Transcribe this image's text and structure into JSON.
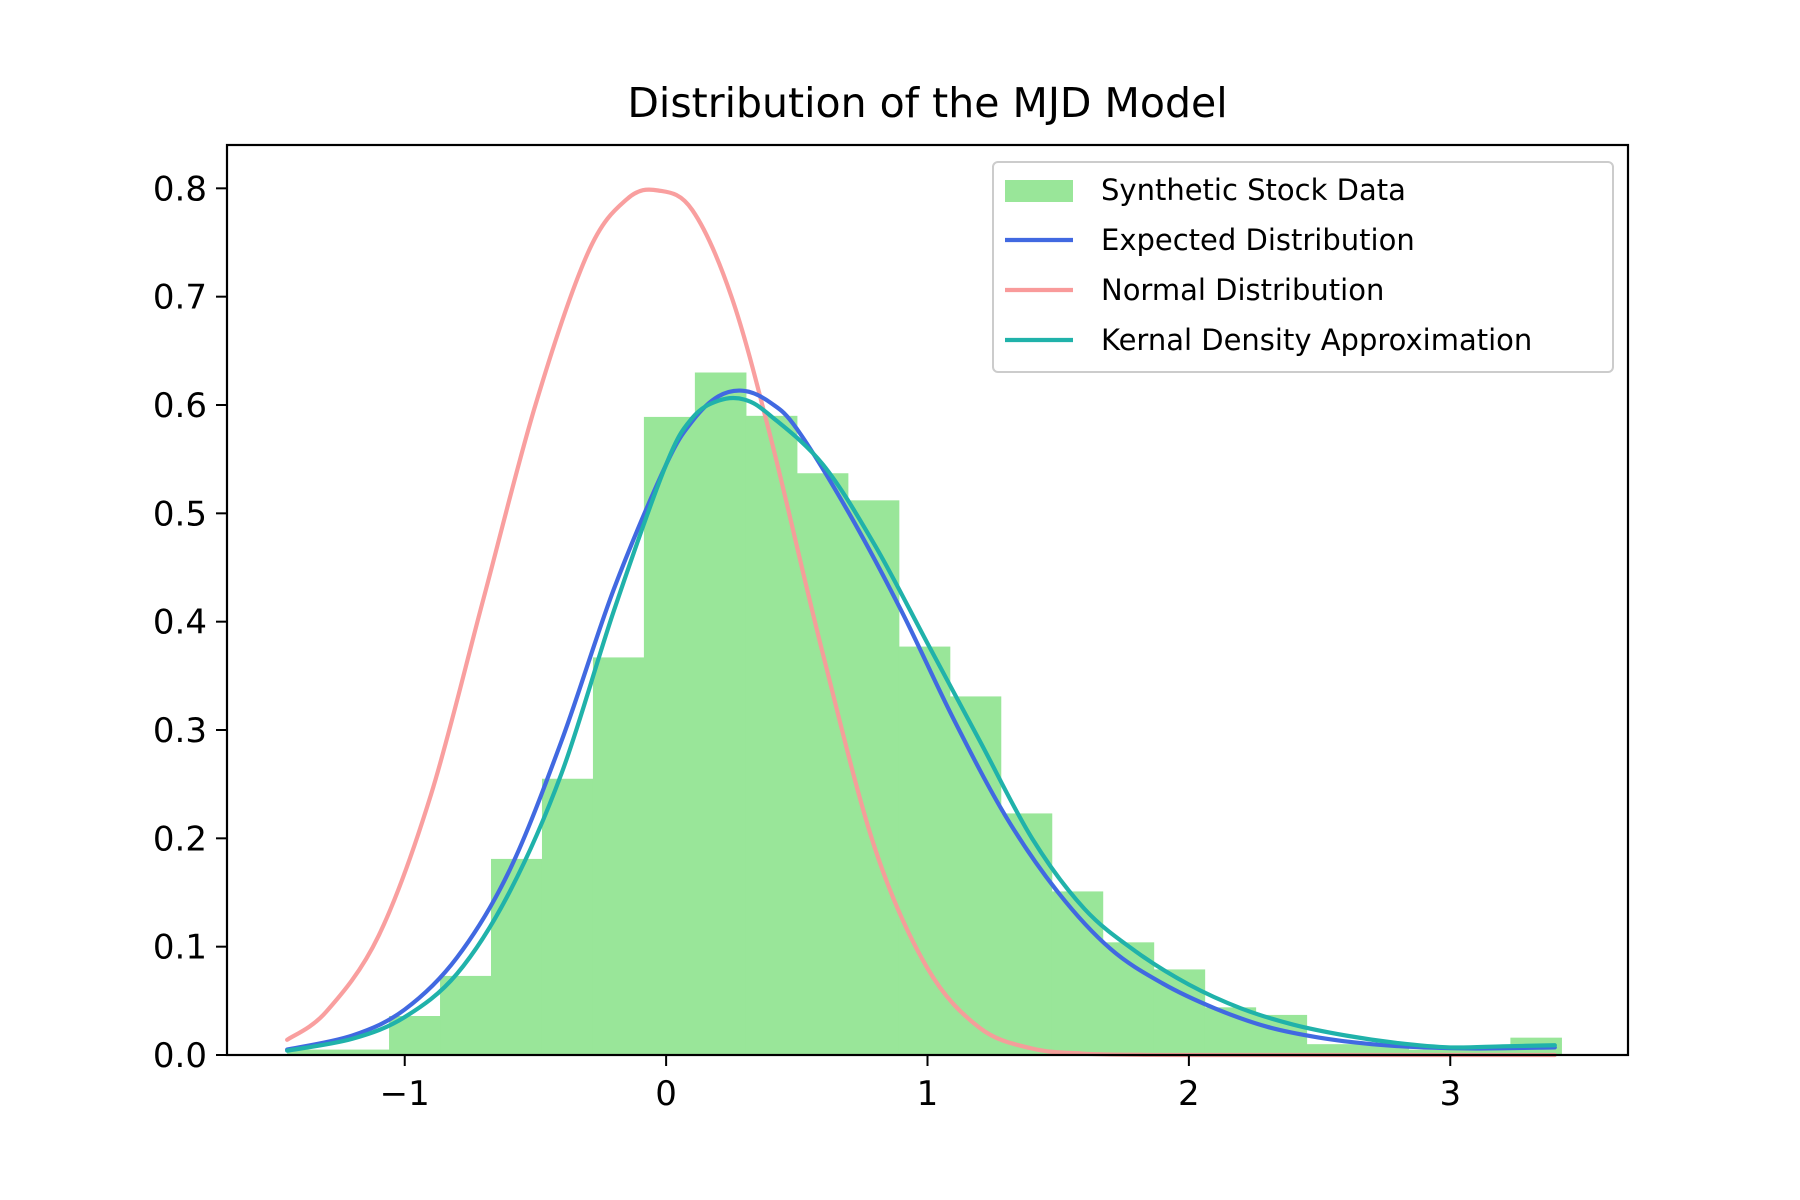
{
  "chart_data": {
    "type": "histogram_with_lines",
    "title": "Distribution of the MJD Model",
    "xlabel": "",
    "ylabel": "",
    "xlim": [
      -1.68,
      3.68
    ],
    "ylim": [
      0,
      0.84
    ],
    "xticks": [
      -1,
      0,
      1,
      2,
      3
    ],
    "xtick_labels": [
      "−1",
      "0",
      "1",
      "2",
      "3"
    ],
    "yticks": [
      0.0,
      0.1,
      0.2,
      0.3,
      0.4,
      0.5,
      0.6,
      0.7,
      0.8
    ],
    "ytick_labels": [
      "0.0",
      "0.1",
      "0.2",
      "0.3",
      "0.4",
      "0.5",
      "0.6",
      "0.7",
      "0.8"
    ],
    "grid": false,
    "legend_position": "upper-right",
    "colors": {
      "histogram": "#99e699",
      "expected": "#4169e1",
      "normal": "#f99a9a",
      "kde": "#20b2aa"
    },
    "histogram": {
      "name": "Synthetic Stock Data",
      "bin_edges": [
        -1.45,
        -1.255,
        -1.06,
        -0.865,
        -0.67,
        -0.475,
        -0.28,
        -0.085,
        0.11,
        0.305,
        0.5,
        0.695,
        0.89,
        1.085,
        1.28,
        1.475,
        1.67,
        1.865,
        2.06,
        2.255,
        2.45,
        2.645,
        2.84,
        3.035,
        3.23,
        3.425
      ],
      "values": [
        0.005,
        0.005,
        0.036,
        0.073,
        0.181,
        0.255,
        0.367,
        0.589,
        0.63,
        0.59,
        0.537,
        0.512,
        0.377,
        0.331,
        0.223,
        0.151,
        0.104,
        0.079,
        0.044,
        0.037,
        0.01,
        0.01,
        0.005,
        0.005,
        0.016
      ]
    },
    "series": [
      {
        "name": "Expected Distribution",
        "x": [
          -1.45,
          -1.2,
          -1.0,
          -0.8,
          -0.6,
          -0.4,
          -0.2,
          0.0,
          0.1,
          0.2,
          0.3,
          0.4,
          0.5,
          0.7,
          0.9,
          1.1,
          1.3,
          1.5,
          1.7,
          1.9,
          2.1,
          2.3,
          2.5,
          2.7,
          2.9,
          3.1,
          3.4
        ],
        "y": [
          0.005,
          0.018,
          0.042,
          0.09,
          0.17,
          0.29,
          0.43,
          0.545,
          0.585,
          0.608,
          0.613,
          0.602,
          0.578,
          0.5,
          0.41,
          0.31,
          0.22,
          0.15,
          0.098,
          0.066,
          0.043,
          0.026,
          0.016,
          0.01,
          0.007,
          0.006,
          0.007
        ]
      },
      {
        "name": "Normal Distribution",
        "x": [
          -1.45,
          -1.3,
          -1.1,
          -0.9,
          -0.7,
          -0.5,
          -0.3,
          -0.15,
          -0.03,
          0.1,
          0.25,
          0.4,
          0.6,
          0.8,
          1.0,
          1.2,
          1.4,
          1.6,
          1.8,
          2.0,
          2.5,
          3.0,
          3.4
        ],
        "y": [
          0.014,
          0.04,
          0.11,
          0.24,
          0.42,
          0.6,
          0.74,
          0.79,
          0.798,
          0.78,
          0.7,
          0.57,
          0.37,
          0.19,
          0.08,
          0.025,
          0.006,
          0.0012,
          0.0002,
          0.0,
          0.0,
          0.0,
          0.0
        ]
      },
      {
        "name": "Kernal Density Approximation",
        "x": [
          -1.45,
          -1.2,
          -1.0,
          -0.8,
          -0.6,
          -0.4,
          -0.2,
          0.0,
          0.1,
          0.2,
          0.3,
          0.4,
          0.6,
          0.8,
          1.0,
          1.2,
          1.4,
          1.6,
          1.8,
          2.0,
          2.2,
          2.4,
          2.6,
          2.8,
          3.0,
          3.2,
          3.4
        ],
        "y": [
          0.004,
          0.015,
          0.035,
          0.075,
          0.15,
          0.26,
          0.41,
          0.545,
          0.588,
          0.604,
          0.605,
          0.59,
          0.545,
          0.47,
          0.38,
          0.29,
          0.2,
          0.135,
          0.095,
          0.065,
          0.043,
          0.028,
          0.018,
          0.011,
          0.007,
          0.008,
          0.009
        ]
      }
    ]
  }
}
